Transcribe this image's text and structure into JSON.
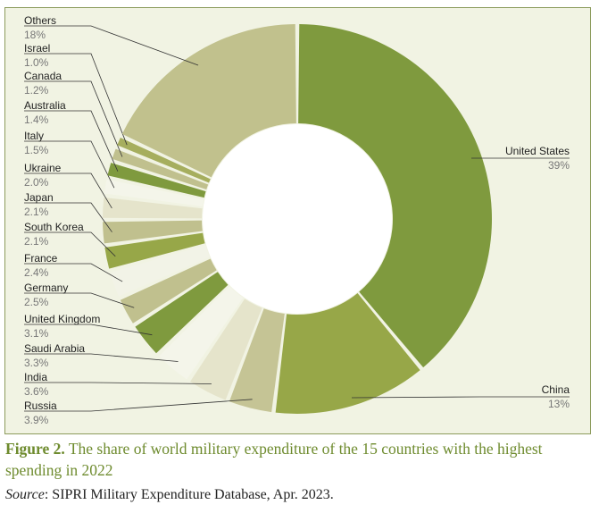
{
  "chart_data": {
    "type": "pie",
    "style": "donut",
    "slices": [
      {
        "label": "United States",
        "value": 39,
        "value_label": "39%",
        "color": "#7f9a3e"
      },
      {
        "label": "China",
        "value": 13,
        "value_label": "13%",
        "color": "#97a748"
      },
      {
        "label": "Russia",
        "value": 3.9,
        "value_label": "3.9%",
        "color": "#c5c495"
      },
      {
        "label": "India",
        "value": 3.6,
        "value_label": "3.6%",
        "color": "#e5e4cb"
      },
      {
        "label": "Saudi Arabia",
        "value": 3.3,
        "value_label": "3.3%",
        "color": "#f4f5ea"
      },
      {
        "label": "United Kingdom",
        "value": 3.1,
        "value_label": "3.1%",
        "color": "#7f9a3e"
      },
      {
        "label": "Germany",
        "value": 2.5,
        "value_label": "2.5%",
        "color": "#c0c08e"
      },
      {
        "label": "France",
        "value": 2.4,
        "value_label": "2.4%",
        "color": "#f2f3e7"
      },
      {
        "label": "South Korea",
        "value": 2.1,
        "value_label": "2.1%",
        "color": "#97a748"
      },
      {
        "label": "Japan",
        "value": 2.1,
        "value_label": "2.1%",
        "color": "#c0c08e"
      },
      {
        "label": "Ukraine",
        "value": 2.0,
        "value_label": "2.0%",
        "color": "#e5e4cb"
      },
      {
        "label": "Italy",
        "value": 1.5,
        "value_label": "1.5%",
        "color": "#f4f5ea"
      },
      {
        "label": "Australia",
        "value": 1.4,
        "value_label": "1.4%",
        "color": "#7f9a3e"
      },
      {
        "label": "Canada",
        "value": 1.2,
        "value_label": "1.2%",
        "color": "#c0c08e"
      },
      {
        "label": "Israel",
        "value": 1.0,
        "value_label": "1.0%",
        "color": "#a6ae5e"
      },
      {
        "label": "Others",
        "value": 18,
        "value_label": "18%",
        "color": "#c1c18d"
      }
    ],
    "title": ""
  },
  "caption": {
    "figure_label": "Figure 2.",
    "text": " The share of world military expenditure of the 15 countries with the highest spending in 2022"
  },
  "source": {
    "label": "Source",
    "text": ": SIPRI Military Expenditure Database, Apr. 2023."
  }
}
